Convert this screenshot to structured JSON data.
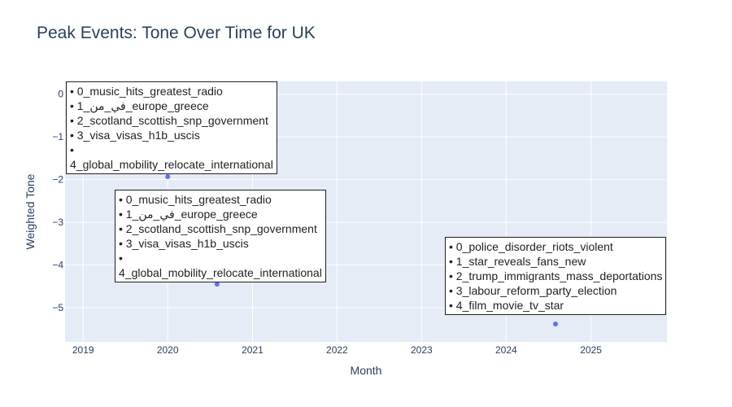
{
  "chart_data": {
    "type": "scatter",
    "title": "Peak Events: Tone Over Time for UK",
    "xlabel": "Month",
    "ylabel": "Weighted Tone",
    "x_ticks": [
      "2019",
      "2020",
      "2021",
      "2022",
      "2023",
      "2024",
      "2025"
    ],
    "y_ticks": [
      "0",
      "−1",
      "−2",
      "−3",
      "−4",
      "−5"
    ],
    "xlim": [
      "2018-10-15",
      "2025-11-25"
    ],
    "ylim": [
      -5.8,
      0.3
    ],
    "grid": true,
    "colors": {
      "plot_bg": "#e5ecf6",
      "grid": "#ffffff",
      "marker": "#636efa",
      "text": "#2a3f5f"
    },
    "points": [
      {
        "x": "2020-01-01",
        "y": -1.93,
        "annotation": [
          "• 0_music_hits_greatest_radio",
          "• 1_في_من_europe_greece",
          "• 2_scotland_scottish_snp_government",
          "• 3_visa_visas_h1b_uscis",
          "•",
          "4_global_mobility_relocate_international"
        ]
      },
      {
        "x": "2020-08-01",
        "y": -4.45,
        "annotation": [
          "• 0_music_hits_greatest_radio",
          "• 1_في_من_europe_greece",
          "• 2_scotland_scottish_snp_government",
          "• 3_visa_visas_h1b_uscis",
          "•",
          "4_global_mobility_relocate_international"
        ]
      },
      {
        "x": "2024-08-01",
        "y": -5.38,
        "annotation": [
          "• 0_police_disorder_riots_violent",
          "• 1_star_reveals_fans_new",
          "• 2_trump_immigrants_mass_deportations",
          "• 3_labour_reform_party_election",
          "• 4_film_movie_tv_star"
        ]
      }
    ]
  }
}
